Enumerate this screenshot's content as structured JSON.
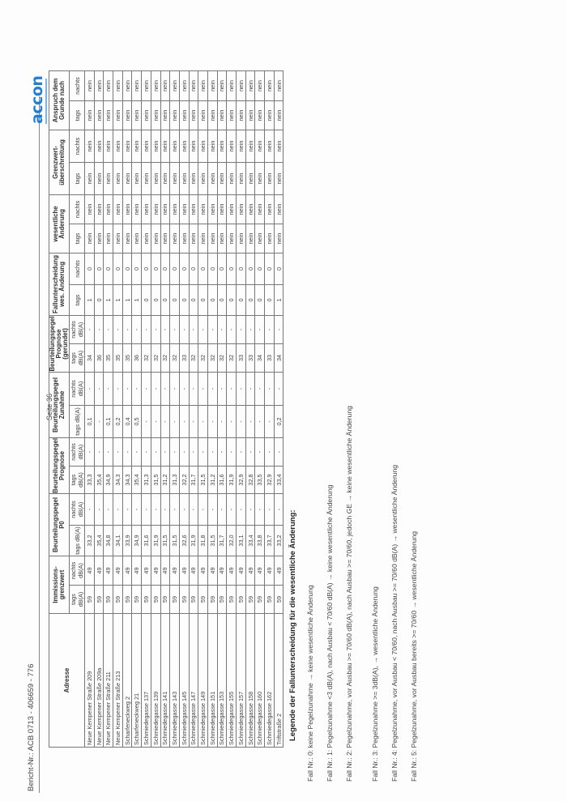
{
  "header": {
    "report_number": "Bericht-Nr.: ACB 0713 - 406659 - 776",
    "page_label": "Seite 36",
    "logo_text": "accon"
  },
  "table": {
    "group_headers": {
      "address": "Adresse",
      "immission": "Immissions-grenzwert",
      "p0": "Beurteilungspegel P0",
      "prognose": "Beurteilungspegel Prognose",
      "zunahme": "Beurteilungspegel Zunahme",
      "gerundet": "Beurteilungspegel Prognose (gerundet)",
      "fall": "Fallunterscheidung wes. Änderung",
      "wesentlich": "wesentliche Änderung",
      "grenzwert": "Grenzwert-überschreitung",
      "anspruch": "Anspruch dem Grunde nach"
    },
    "sub_headers": {
      "tags_db": "tags dB(A)",
      "nachts_db": "nachts dB(A)",
      "tags": "tags",
      "nachts": "nachts"
    },
    "rows": [
      {
        "address": "Neue Kempener Straße 209",
        "ig_t": "59",
        "ig_n": "49",
        "p0_t": "33,2",
        "p0_n": "-",
        "pr_t": "33,3",
        "pr_n": "-",
        "zu_t": "0,1",
        "zu_n": "-",
        "ge_t": "34",
        "ge_n": "-",
        "f_t": "1",
        "f_n": "0",
        "w_t": "nein",
        "w_n": "nein",
        "g_t": "nein",
        "g_n": "nein",
        "a_t": "nein",
        "a_n": "nein"
      },
      {
        "address": "Neue Kempener Straße 209a",
        "ig_t": "59",
        "ig_n": "49",
        "p0_t": "35,4",
        "p0_n": "-",
        "pr_t": "35,4",
        "pr_n": "-",
        "zu_t": "-",
        "zu_n": "-",
        "ge_t": "36",
        "ge_n": "-",
        "f_t": "0",
        "f_n": "0",
        "w_t": "nein",
        "w_n": "nein",
        "g_t": "nein",
        "g_n": "nein",
        "a_t": "nein",
        "a_n": "nein"
      },
      {
        "address": "Neue Kempener Straße 211",
        "ig_t": "59",
        "ig_n": "49",
        "p0_t": "34,8",
        "p0_n": "-",
        "pr_t": "34,9",
        "pr_n": "-",
        "zu_t": "0,1",
        "zu_n": "-",
        "ge_t": "35",
        "ge_n": "-",
        "f_t": "1",
        "f_n": "0",
        "w_t": "nein",
        "w_n": "nein",
        "g_t": "nein",
        "g_n": "nein",
        "a_t": "nein",
        "a_n": "nein"
      },
      {
        "address": "Neue Kempener Straße 213",
        "ig_t": "59",
        "ig_n": "49",
        "p0_t": "34,1",
        "p0_n": "-",
        "pr_t": "34,3",
        "pr_n": "-",
        "zu_t": "0,2",
        "zu_n": "-",
        "ge_t": "35",
        "ge_n": "-",
        "f_t": "1",
        "f_n": "0",
        "w_t": "nein",
        "w_n": "nein",
        "g_t": "nein",
        "g_n": "nein",
        "a_t": "nein",
        "a_n": "nein"
      },
      {
        "address": "Scharfeneckweg 2",
        "ig_t": "59",
        "ig_n": "49",
        "p0_t": "33,9",
        "p0_n": "-",
        "pr_t": "34,3",
        "pr_n": "-",
        "zu_t": "0,4",
        "zu_n": "-",
        "ge_t": "35",
        "ge_n": "-",
        "f_t": "1",
        "f_n": "0",
        "w_t": "nein",
        "w_n": "nein",
        "g_t": "nein",
        "g_n": "nein",
        "a_t": "nein",
        "a_n": "nein"
      },
      {
        "address": "Scharfeneckweg 21",
        "ig_t": "59",
        "ig_n": "49",
        "p0_t": "34,9",
        "p0_n": "-",
        "pr_t": "35,4",
        "pr_n": "-",
        "zu_t": "0,5",
        "zu_n": "-",
        "ge_t": "36",
        "ge_n": "-",
        "f_t": "1",
        "f_n": "0",
        "w_t": "nein",
        "w_n": "nein",
        "g_t": "nein",
        "g_n": "nein",
        "a_t": "nein",
        "a_n": "nein"
      },
      {
        "address": "Schmiedegasse 137",
        "ig_t": "59",
        "ig_n": "49",
        "p0_t": "31,6",
        "p0_n": "-",
        "pr_t": "31,3",
        "pr_n": "-",
        "zu_t": "-",
        "zu_n": "-",
        "ge_t": "32",
        "ge_n": "-",
        "f_t": "0",
        "f_n": "0",
        "w_t": "nein",
        "w_n": "nein",
        "g_t": "nein",
        "g_n": "nein",
        "a_t": "nein",
        "a_n": "nein"
      },
      {
        "address": "Schmiedegasse 139",
        "ig_t": "59",
        "ig_n": "49",
        "p0_t": "31,9",
        "p0_n": "-",
        "pr_t": "31,5",
        "pr_n": "-",
        "zu_t": "-",
        "zu_n": "-",
        "ge_t": "32",
        "ge_n": "-",
        "f_t": "0",
        "f_n": "0",
        "w_t": "nein",
        "w_n": "nein",
        "g_t": "nein",
        "g_n": "nein",
        "a_t": "nein",
        "a_n": "nein"
      },
      {
        "address": "Schmiedegasse 141",
        "ig_t": "59",
        "ig_n": "49",
        "p0_t": "31,5",
        "p0_n": "-",
        "pr_t": "31,2",
        "pr_n": "-",
        "zu_t": "-",
        "zu_n": "-",
        "ge_t": "32",
        "ge_n": "-",
        "f_t": "0",
        "f_n": "0",
        "w_t": "nein",
        "w_n": "nein",
        "g_t": "nein",
        "g_n": "nein",
        "a_t": "nein",
        "a_n": "nein"
      },
      {
        "address": "Schmiedegasse 143",
        "ig_t": "59",
        "ig_n": "49",
        "p0_t": "31,5",
        "p0_n": "-",
        "pr_t": "31,3",
        "pr_n": "-",
        "zu_t": "-",
        "zu_n": "-",
        "ge_t": "32",
        "ge_n": "-",
        "f_t": "0",
        "f_n": "0",
        "w_t": "nein",
        "w_n": "nein",
        "g_t": "nein",
        "g_n": "nein",
        "a_t": "nein",
        "a_n": "nein"
      },
      {
        "address": "Schmiedegasse 145",
        "ig_t": "59",
        "ig_n": "49",
        "p0_t": "32,6",
        "p0_n": "-",
        "pr_t": "32,2",
        "pr_n": "-",
        "zu_t": "-",
        "zu_n": "-",
        "ge_t": "33",
        "ge_n": "-",
        "f_t": "0",
        "f_n": "0",
        "w_t": "nein",
        "w_n": "nein",
        "g_t": "nein",
        "g_n": "nein",
        "a_t": "nein",
        "a_n": "nein"
      },
      {
        "address": "Schmiedegasse 147",
        "ig_t": "59",
        "ig_n": "49",
        "p0_t": "31,9",
        "p0_n": "-",
        "pr_t": "31,7",
        "pr_n": "-",
        "zu_t": "-",
        "zu_n": "-",
        "ge_t": "32",
        "ge_n": "-",
        "f_t": "0",
        "f_n": "0",
        "w_t": "nein",
        "w_n": "nein",
        "g_t": "nein",
        "g_n": "nein",
        "a_t": "nein",
        "a_n": "nein"
      },
      {
        "address": "Schmiedegasse 149",
        "ig_t": "59",
        "ig_n": "49",
        "p0_t": "31,8",
        "p0_n": "-",
        "pr_t": "31,5",
        "pr_n": "-",
        "zu_t": "-",
        "zu_n": "-",
        "ge_t": "32",
        "ge_n": "-",
        "f_t": "0",
        "f_n": "0",
        "w_t": "nein",
        "w_n": "nein",
        "g_t": "nein",
        "g_n": "nein",
        "a_t": "nein",
        "a_n": "nein"
      },
      {
        "address": "Schmiedegasse 151",
        "ig_t": "59",
        "ig_n": "49",
        "p0_t": "31,5",
        "p0_n": "-",
        "pr_t": "31,2",
        "pr_n": "-",
        "zu_t": "-",
        "zu_n": "-",
        "ge_t": "32",
        "ge_n": "-",
        "f_t": "0",
        "f_n": "0",
        "w_t": "nein",
        "w_n": "nein",
        "g_t": "nein",
        "g_n": "nein",
        "a_t": "nein",
        "a_n": "nein"
      },
      {
        "address": "Schmiedegasse 153",
        "ig_t": "59",
        "ig_n": "49",
        "p0_t": "31,7",
        "p0_n": "-",
        "pr_t": "31,6",
        "pr_n": "-",
        "zu_t": "-",
        "zu_n": "-",
        "ge_t": "32",
        "ge_n": "-",
        "f_t": "0",
        "f_n": "0",
        "w_t": "nein",
        "w_n": "nein",
        "g_t": "nein",
        "g_n": "nein",
        "a_t": "nein",
        "a_n": "nein"
      },
      {
        "address": "Schmiedegasse 155",
        "ig_t": "59",
        "ig_n": "49",
        "p0_t": "32,0",
        "p0_n": "-",
        "pr_t": "31,9",
        "pr_n": "-",
        "zu_t": "-",
        "zu_n": "-",
        "ge_t": "32",
        "ge_n": "-",
        "f_t": "0",
        "f_n": "0",
        "w_t": "nein",
        "w_n": "nein",
        "g_t": "nein",
        "g_n": "nein",
        "a_t": "nein",
        "a_n": "nein"
      },
      {
        "address": "Schmiedegasse 157",
        "ig_t": "59",
        "ig_n": "49",
        "p0_t": "33,1",
        "p0_n": "-",
        "pr_t": "32,9",
        "pr_n": "-",
        "zu_t": "-",
        "zu_n": "-",
        "ge_t": "33",
        "ge_n": "-",
        "f_t": "0",
        "f_n": "0",
        "w_t": "nein",
        "w_n": "nein",
        "g_t": "nein",
        "g_n": "nein",
        "a_t": "nein",
        "a_n": "nein"
      },
      {
        "address": "Schmiedegasse 158",
        "ig_t": "59",
        "ig_n": "49",
        "p0_t": "33,4",
        "p0_n": "-",
        "pr_t": "32,8",
        "pr_n": "-",
        "zu_t": "-",
        "zu_n": "-",
        "ge_t": "33",
        "ge_n": "-",
        "f_t": "0",
        "f_n": "0",
        "w_t": "nein",
        "w_n": "nein",
        "g_t": "nein",
        "g_n": "nein",
        "a_t": "nein",
        "a_n": "nein"
      },
      {
        "address": "Schmiedegasse 160",
        "ig_t": "59",
        "ig_n": "49",
        "p0_t": "33,8",
        "p0_n": "-",
        "pr_t": "33,5",
        "pr_n": "-",
        "zu_t": "-",
        "zu_n": "-",
        "ge_t": "34",
        "ge_n": "-",
        "f_t": "0",
        "f_n": "0",
        "w_t": "nein",
        "w_n": "nein",
        "g_t": "nein",
        "g_n": "nein",
        "a_t": "nein",
        "a_n": "nein"
      },
      {
        "address": "Schmiedegasse 162",
        "ig_t": "59",
        "ig_n": "49",
        "p0_t": "33,7",
        "p0_n": "-",
        "pr_t": "32,9",
        "pr_n": "-",
        "zu_t": "-",
        "zu_n": "-",
        "ge_t": "33",
        "ge_n": "-",
        "f_t": "0",
        "f_n": "0",
        "w_t": "nein",
        "w_n": "nein",
        "g_t": "nein",
        "g_n": "nein",
        "a_t": "nein",
        "a_n": "nein"
      },
      {
        "address": "Triftstraße 2",
        "ig_t": "59",
        "ig_n": "49",
        "p0_t": "33,2",
        "p0_n": "-",
        "pr_t": "33,4",
        "pr_n": "-",
        "zu_t": "0,2",
        "zu_n": "-",
        "ge_t": "34",
        "ge_n": "-",
        "f_t": "1",
        "f_n": "0",
        "w_t": "nein",
        "w_n": "nein",
        "g_t": "nein",
        "g_n": "nein",
        "a_t": "nein",
        "a_n": "nein"
      }
    ]
  },
  "legend": {
    "title": "Legende der Fallunterscheidung für die wesentliche Änderung:",
    "items": [
      "Fall Nr.: 0: keine Pegelzunahme → keine wesentliche Änderung",
      "Fall Nr.: 1: Pegelzunahme <3 dB(A), nach Ausbau < 70/60 dB(A) → keine wesentliche Änderung",
      "Fall Nr.: 2: Pegelzunahme, vor Ausbau >= 70/60 dB(A), nach Ausbau >= 70/60, jedoch GE → keine wesentliche Änderung",
      "Fall Nr.: 3: Pegelzunahme >= 3dB(A), → wesentliche Änderung",
      "Fall Nr.: 4: Pegelzunahme, vor Ausbau < 70/60, nach Ausbau  >= 70/60 dB(A) → wesentliche Änderung",
      "Fall Nr.: 5: Pegelzunahme, vor Ausbau bereits >= 70/60 → wesentliche Änderung"
    ]
  }
}
